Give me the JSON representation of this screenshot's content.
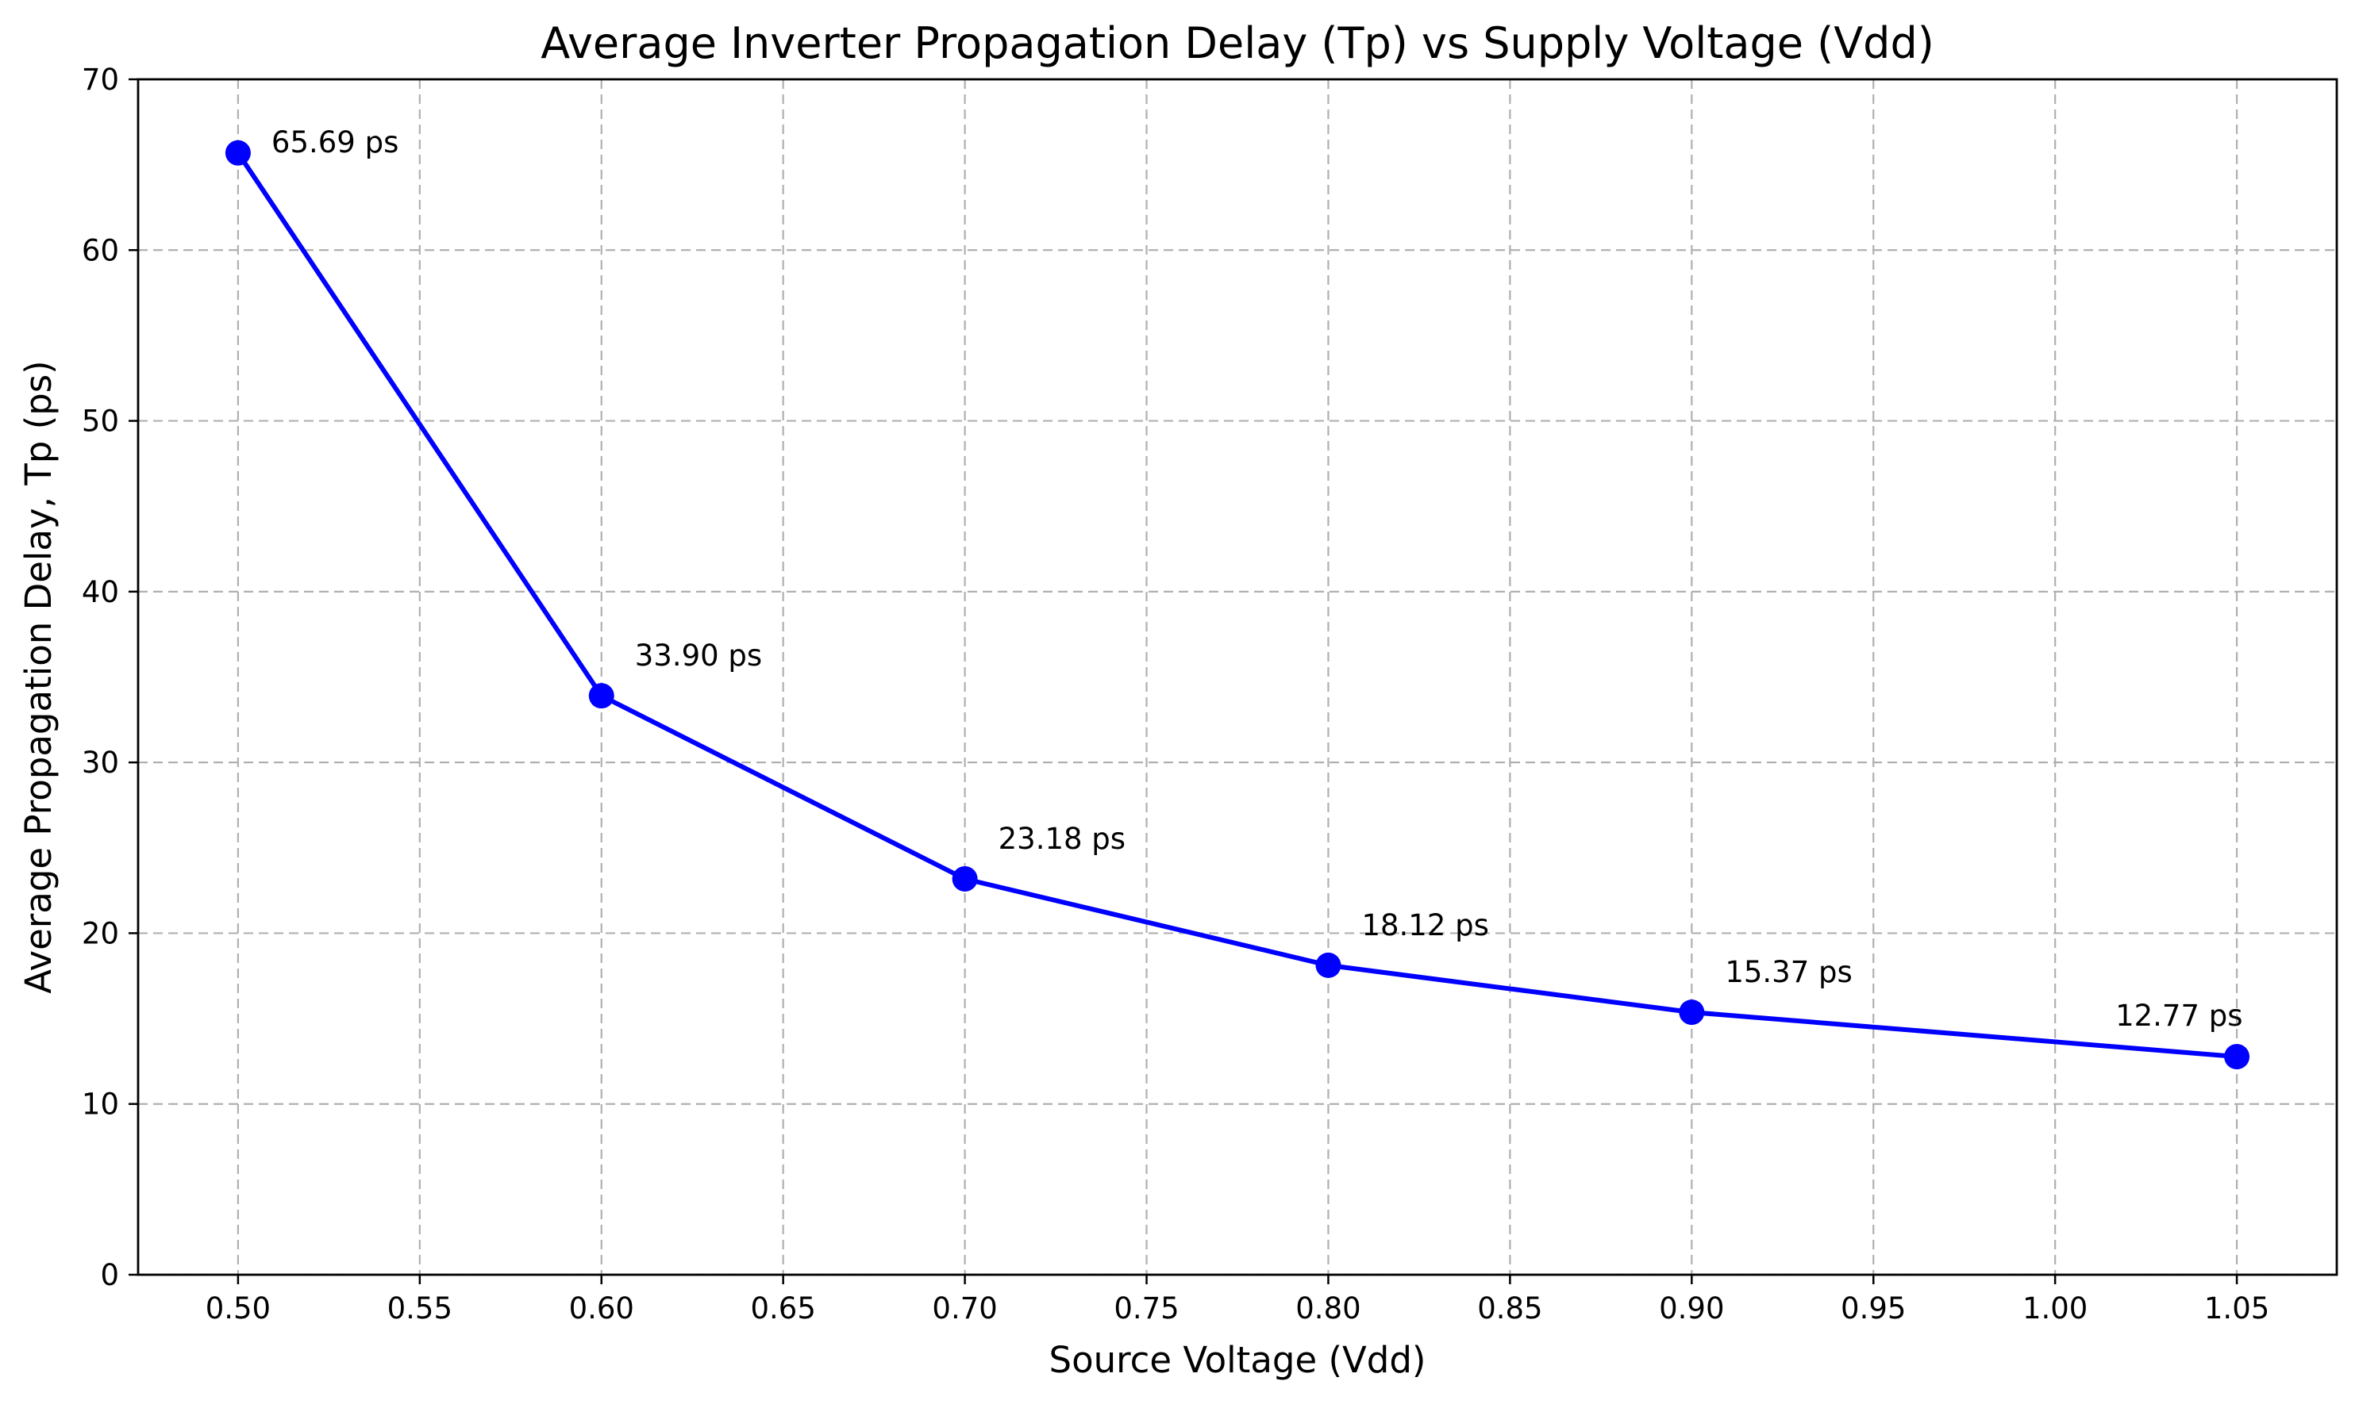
{
  "chart_data": {
    "type": "line",
    "title": "Average Inverter Propagation Delay (Tp) vs Supply Voltage (Vdd)",
    "xlabel": "Source Voltage (Vdd)",
    "ylabel": "Average Propagation Delay, Tp (ps)",
    "xlim": [
      0.4725,
      1.0775
    ],
    "ylim": [
      0,
      70
    ],
    "x_ticks": [
      "0.50",
      "0.55",
      "0.60",
      "0.65",
      "0.70",
      "0.75",
      "0.80",
      "0.85",
      "0.90",
      "0.95",
      "1.00",
      "1.05"
    ],
    "y_ticks": [
      "0",
      "10",
      "20",
      "30",
      "40",
      "50",
      "60",
      "70"
    ],
    "grid": true,
    "series": [
      {
        "x": [
          0.5,
          0.6,
          0.7,
          0.8,
          0.9,
          1.05
        ],
        "y": [
          65.69,
          33.9,
          23.18,
          18.12,
          15.37,
          12.77
        ],
        "color": "#0000ff",
        "marker": "circle"
      }
    ],
    "annotations": [
      "65.69 ps",
      "33.90 ps",
      "23.18 ps",
      "18.12 ps",
      "15.37 ps",
      "12.77 ps"
    ]
  }
}
